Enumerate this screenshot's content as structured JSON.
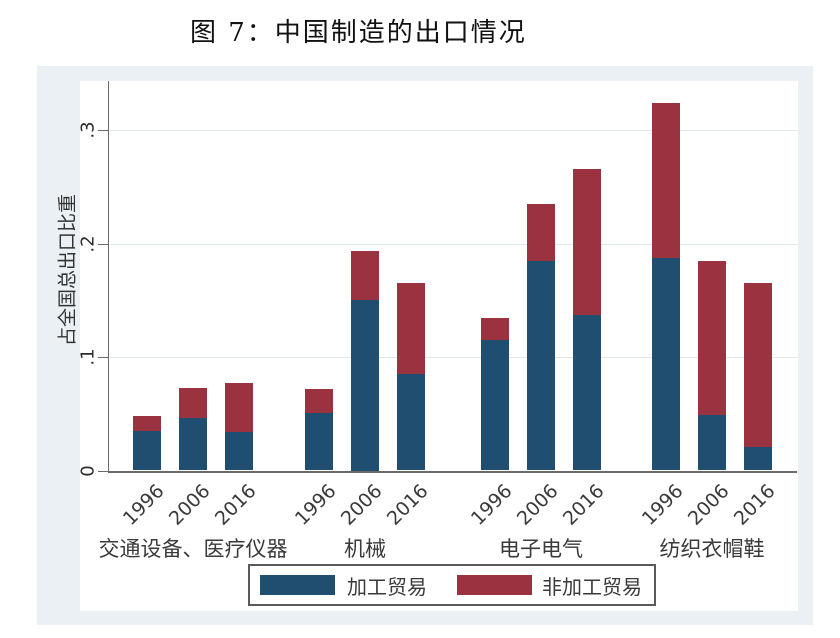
{
  "page": {
    "title": "图 7：中国制造的出口情况"
  },
  "chart_data": {
    "type": "bar",
    "stacked": true,
    "title": "图 7：中国制造的出口情况",
    "ylabel": "占全国总出口比重",
    "xlabel": "",
    "ylim": [
      0,
      0.33
    ],
    "yticks": [
      0,
      0.1,
      0.2,
      0.3
    ],
    "ytick_labels": [
      "0",
      ".1",
      ".2",
      ".3"
    ],
    "grid": true,
    "legend_position": "bottom-center",
    "categories": [
      "交通设备、医疗仪器",
      "机械",
      "电子电气",
      "纺织衣帽鞋"
    ],
    "years": [
      "1996",
      "2006",
      "2016"
    ],
    "series": [
      {
        "name": "加工贸易",
        "color": "#1f4e70",
        "values": [
          [
            0.035,
            0.046,
            0.034
          ],
          [
            0.051,
            0.15,
            0.085
          ],
          [
            0.115,
            0.185,
            0.137
          ],
          [
            0.187,
            0.049,
            0.021
          ]
        ]
      },
      {
        "name": "非加工贸易",
        "color": "#9a333f",
        "values": [
          [
            0.013,
            0.027,
            0.043
          ],
          [
            0.021,
            0.043,
            0.08
          ],
          [
            0.019,
            0.05,
            0.129
          ],
          [
            0.137,
            0.136,
            0.144
          ]
        ]
      }
    ],
    "colors": {
      "figure_background": "#eaf0f3",
      "plot_background": "#ffffff",
      "gridline": "#dfe9ec",
      "axis": "#6a6a6a"
    }
  }
}
